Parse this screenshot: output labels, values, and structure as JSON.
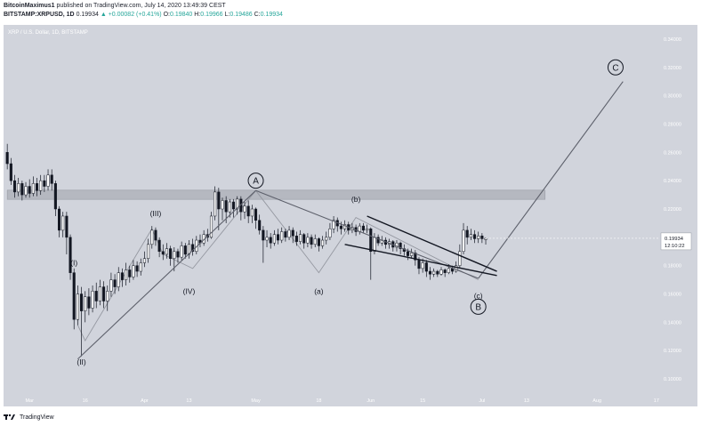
{
  "header": {
    "publisher": "BitcoinMaximus1",
    "published_text": "published on TradingView.com, July 14, 2020 13:49:39 CEST",
    "symbol": "BITSTAMP:XRPUSD, 1D",
    "last": "0.19934",
    "change": "▲ +0.00082 (+0.41%)",
    "o_label": "O:",
    "o": "0.19840",
    "h_label": "H:",
    "h": "0.19966",
    "l_label": "L:",
    "l": "0.19486",
    "c_label": "C:",
    "c": "0.19934"
  },
  "footer": {
    "brand": "TradingView"
  },
  "colors": {
    "background": "#d1d4dc",
    "line": "#5d606b",
    "up": "#ffffff",
    "down": "#131722",
    "zone": "#b2b5be",
    "price_tag": "#ffffff"
  },
  "chart_data": {
    "type": "candlestick",
    "title": "XRP / U.S. Dollar, 1D, BITSTAMP",
    "ylim": [
      0.09,
      0.35
    ],
    "y_ticks": [
      "0.34000",
      "0.32000",
      "0.30000",
      "0.28000",
      "0.26000",
      "0.24000",
      "0.22000",
      "0.20000",
      "0.18000",
      "0.16000",
      "0.14000",
      "0.12000",
      "0.10000"
    ],
    "y_tick_values": [
      0.34,
      0.32,
      0.3,
      0.28,
      0.26,
      0.24,
      0.22,
      0.2,
      0.18,
      0.16,
      0.14,
      0.12,
      0.1
    ],
    "x_ticks": [
      {
        "label": "Mar",
        "day": 0
      },
      {
        "label": "16",
        "day": 15
      },
      {
        "label": "Apr",
        "day": 31
      },
      {
        "label": "13",
        "day": 43
      },
      {
        "label": "May",
        "day": 61
      },
      {
        "label": "18",
        "day": 78
      },
      {
        "label": "Jun",
        "day": 92
      },
      {
        "label": "15",
        "day": 106
      },
      {
        "label": "Jul",
        "day": 122
      },
      {
        "label": "13",
        "day": 134
      },
      {
        "label": "Aug",
        "day": 153
      },
      {
        "label": "17",
        "day": 169
      }
    ],
    "x_range": [
      -7,
      170
    ],
    "last_price": {
      "value": 0.19934,
      "label": "0.19934",
      "timer": "12:10:22"
    },
    "resistance_zone": {
      "low": 0.2268,
      "high": 0.2333,
      "day_start": -6,
      "day_end": 139
    },
    "candles": [
      [
        -6,
        0.26,
        0.252,
        0.266,
        0.248
      ],
      [
        -5,
        0.252,
        0.24,
        0.256,
        0.237
      ],
      [
        -4,
        0.24,
        0.232,
        0.244,
        0.228
      ],
      [
        -3,
        0.232,
        0.238,
        0.242,
        0.229
      ],
      [
        -2,
        0.238,
        0.23,
        0.24,
        0.226
      ],
      [
        -1,
        0.23,
        0.236,
        0.239,
        0.228
      ],
      [
        0,
        0.236,
        0.231,
        0.241,
        0.228
      ],
      [
        1,
        0.231,
        0.238,
        0.243,
        0.229
      ],
      [
        2,
        0.238,
        0.233,
        0.242,
        0.229
      ],
      [
        3,
        0.233,
        0.24,
        0.244,
        0.23
      ],
      [
        4,
        0.24,
        0.236,
        0.244,
        0.232
      ],
      [
        5,
        0.236,
        0.244,
        0.248,
        0.233
      ],
      [
        6,
        0.244,
        0.238,
        0.248,
        0.233
      ],
      [
        7,
        0.238,
        0.22,
        0.24,
        0.215
      ],
      [
        8,
        0.22,
        0.205,
        0.222,
        0.2
      ],
      [
        9,
        0.205,
        0.215,
        0.218,
        0.2
      ],
      [
        10,
        0.215,
        0.2,
        0.218,
        0.188
      ],
      [
        11,
        0.2,
        0.175,
        0.202,
        0.17
      ],
      [
        12,
        0.175,
        0.142,
        0.178,
        0.135
      ],
      [
        13,
        0.142,
        0.16,
        0.166,
        0.138
      ],
      [
        14,
        0.16,
        0.148,
        0.165,
        0.116
      ],
      [
        15,
        0.148,
        0.158,
        0.162,
        0.14
      ],
      [
        16,
        0.158,
        0.15,
        0.164,
        0.145
      ],
      [
        17,
        0.15,
        0.162,
        0.166,
        0.147
      ],
      [
        18,
        0.162,
        0.155,
        0.168,
        0.15
      ],
      [
        19,
        0.155,
        0.165,
        0.17,
        0.152
      ],
      [
        20,
        0.165,
        0.155,
        0.169,
        0.15
      ],
      [
        21,
        0.155,
        0.162,
        0.166,
        0.148
      ],
      [
        22,
        0.162,
        0.17,
        0.175,
        0.158
      ],
      [
        23,
        0.17,
        0.165,
        0.174,
        0.16
      ],
      [
        24,
        0.165,
        0.175,
        0.179,
        0.162
      ],
      [
        25,
        0.175,
        0.17,
        0.178,
        0.165
      ],
      [
        26,
        0.17,
        0.177,
        0.182,
        0.166
      ],
      [
        27,
        0.177,
        0.172,
        0.18,
        0.168
      ],
      [
        28,
        0.172,
        0.18,
        0.184,
        0.17
      ],
      [
        29,
        0.18,
        0.176,
        0.183,
        0.172
      ],
      [
        30,
        0.176,
        0.182,
        0.185,
        0.173
      ],
      [
        31,
        0.182,
        0.185,
        0.19,
        0.179
      ],
      [
        32,
        0.185,
        0.195,
        0.199,
        0.182
      ],
      [
        33,
        0.195,
        0.205,
        0.208,
        0.192
      ],
      [
        34,
        0.205,
        0.198,
        0.207,
        0.194
      ],
      [
        35,
        0.198,
        0.19,
        0.2,
        0.186
      ],
      [
        36,
        0.19,
        0.188,
        0.195,
        0.184
      ],
      [
        37,
        0.188,
        0.192,
        0.196,
        0.185
      ],
      [
        38,
        0.192,
        0.185,
        0.194,
        0.18
      ],
      [
        39,
        0.185,
        0.19,
        0.193,
        0.176
      ],
      [
        40,
        0.19,
        0.186,
        0.192,
        0.182
      ],
      [
        41,
        0.186,
        0.194,
        0.197,
        0.184
      ],
      [
        42,
        0.194,
        0.188,
        0.196,
        0.185
      ],
      [
        43,
        0.188,
        0.195,
        0.198,
        0.185
      ],
      [
        44,
        0.195,
        0.19,
        0.199,
        0.187
      ],
      [
        45,
        0.19,
        0.198,
        0.201,
        0.188
      ],
      [
        46,
        0.198,
        0.196,
        0.202,
        0.193
      ],
      [
        47,
        0.196,
        0.202,
        0.205,
        0.194
      ],
      [
        48,
        0.202,
        0.2,
        0.206,
        0.197
      ],
      [
        49,
        0.2,
        0.215,
        0.218,
        0.199
      ],
      [
        50,
        0.215,
        0.232,
        0.236,
        0.212
      ],
      [
        51,
        0.232,
        0.22,
        0.235,
        0.205
      ],
      [
        52,
        0.22,
        0.226,
        0.228,
        0.212
      ],
      [
        53,
        0.226,
        0.218,
        0.229,
        0.21
      ],
      [
        54,
        0.218,
        0.225,
        0.227,
        0.214
      ],
      [
        55,
        0.225,
        0.22,
        0.227,
        0.214
      ],
      [
        56,
        0.22,
        0.227,
        0.229,
        0.216
      ],
      [
        57,
        0.227,
        0.218,
        0.229,
        0.212
      ],
      [
        58,
        0.218,
        0.222,
        0.225,
        0.213
      ],
      [
        59,
        0.222,
        0.215,
        0.226,
        0.21
      ],
      [
        60,
        0.215,
        0.22,
        0.223,
        0.21
      ],
      [
        61,
        0.22,
        0.212,
        0.221,
        0.206
      ],
      [
        62,
        0.212,
        0.205,
        0.216,
        0.202
      ],
      [
        63,
        0.205,
        0.198,
        0.208,
        0.182
      ],
      [
        64,
        0.198,
        0.2,
        0.205,
        0.193
      ],
      [
        65,
        0.2,
        0.196,
        0.203,
        0.192
      ],
      [
        66,
        0.196,
        0.202,
        0.205,
        0.194
      ],
      [
        67,
        0.202,
        0.198,
        0.206,
        0.195
      ],
      [
        68,
        0.198,
        0.204,
        0.207,
        0.196
      ],
      [
        69,
        0.204,
        0.2,
        0.206,
        0.197
      ],
      [
        70,
        0.2,
        0.205,
        0.208,
        0.198
      ],
      [
        71,
        0.205,
        0.201,
        0.207,
        0.196
      ],
      [
        72,
        0.201,
        0.197,
        0.204,
        0.194
      ],
      [
        73,
        0.197,
        0.202,
        0.205,
        0.195
      ],
      [
        74,
        0.202,
        0.196,
        0.203,
        0.192
      ],
      [
        75,
        0.196,
        0.2,
        0.203,
        0.193
      ],
      [
        76,
        0.2,
        0.195,
        0.202,
        0.192
      ],
      [
        77,
        0.195,
        0.199,
        0.202,
        0.193
      ],
      [
        78,
        0.199,
        0.194,
        0.2,
        0.19
      ],
      [
        79,
        0.194,
        0.198,
        0.201,
        0.192
      ],
      [
        80,
        0.198,
        0.2,
        0.204,
        0.195
      ],
      [
        81,
        0.2,
        0.206,
        0.21,
        0.198
      ],
      [
        82,
        0.206,
        0.212,
        0.215,
        0.203
      ],
      [
        83,
        0.212,
        0.208,
        0.214,
        0.204
      ],
      [
        84,
        0.208,
        0.206,
        0.211,
        0.202
      ],
      [
        85,
        0.206,
        0.209,
        0.212,
        0.204
      ],
      [
        86,
        0.209,
        0.205,
        0.211,
        0.202
      ],
      [
        87,
        0.205,
        0.207,
        0.21,
        0.203
      ],
      [
        88,
        0.207,
        0.204,
        0.209,
        0.201
      ],
      [
        89,
        0.204,
        0.208,
        0.21,
        0.202
      ],
      [
        90,
        0.208,
        0.205,
        0.21,
        0.203
      ],
      [
        91,
        0.205,
        0.206,
        0.209,
        0.203
      ],
      [
        92,
        0.206,
        0.19,
        0.207,
        0.17
      ],
      [
        93,
        0.19,
        0.2,
        0.203,
        0.188
      ],
      [
        94,
        0.2,
        0.196,
        0.202,
        0.194
      ],
      [
        95,
        0.196,
        0.198,
        0.201,
        0.194
      ],
      [
        96,
        0.198,
        0.195,
        0.2,
        0.192
      ],
      [
        97,
        0.195,
        0.197,
        0.199,
        0.192
      ],
      [
        98,
        0.197,
        0.193,
        0.198,
        0.19
      ],
      [
        99,
        0.193,
        0.196,
        0.198,
        0.19
      ],
      [
        100,
        0.196,
        0.192,
        0.197,
        0.188
      ],
      [
        101,
        0.192,
        0.19,
        0.195,
        0.187
      ],
      [
        102,
        0.19,
        0.187,
        0.192,
        0.184
      ],
      [
        103,
        0.187,
        0.189,
        0.192,
        0.185
      ],
      [
        104,
        0.189,
        0.184,
        0.191,
        0.18
      ],
      [
        105,
        0.184,
        0.178,
        0.186,
        0.174
      ],
      [
        106,
        0.178,
        0.182,
        0.185,
        0.175
      ],
      [
        107,
        0.182,
        0.176,
        0.184,
        0.172
      ],
      [
        108,
        0.176,
        0.174,
        0.179,
        0.17
      ],
      [
        109,
        0.174,
        0.176,
        0.178,
        0.172
      ],
      [
        110,
        0.176,
        0.174,
        0.177,
        0.172
      ],
      [
        111,
        0.174,
        0.177,
        0.179,
        0.173
      ],
      [
        112,
        0.177,
        0.175,
        0.178,
        0.172
      ],
      [
        113,
        0.175,
        0.178,
        0.181,
        0.174
      ],
      [
        114,
        0.178,
        0.176,
        0.18,
        0.174
      ],
      [
        115,
        0.176,
        0.18,
        0.183,
        0.175
      ],
      [
        116,
        0.18,
        0.19,
        0.195,
        0.178
      ],
      [
        117,
        0.19,
        0.205,
        0.21,
        0.188
      ],
      [
        118,
        0.205,
        0.2,
        0.208,
        0.195
      ],
      [
        119,
        0.2,
        0.202,
        0.206,
        0.198
      ],
      [
        120,
        0.202,
        0.199,
        0.205,
        0.196
      ],
      [
        121,
        0.199,
        0.201,
        0.204,
        0.196
      ],
      [
        122,
        0.201,
        0.199,
        0.203,
        0.196
      ],
      [
        123,
        0.1984,
        0.1993,
        0.1997,
        0.1949
      ]
    ]
  },
  "annotations": {
    "waves": [
      {
        "label": "(I)",
        "day": 12,
        "price": 0.18
      },
      {
        "label": "(II)",
        "day": 14,
        "price": 0.11
      },
      {
        "label": "(III)",
        "day": 34,
        "price": 0.215
      },
      {
        "label": "(IV)",
        "day": 43,
        "price": 0.16
      },
      {
        "label": "(a)",
        "day": 78,
        "price": 0.16
      },
      {
        "label": "(b)",
        "day": 88,
        "price": 0.225
      },
      {
        "label": "(c)",
        "day": 121,
        "price": 0.157
      }
    ],
    "circled": [
      {
        "label": "A",
        "day": 61,
        "price": 0.24
      },
      {
        "label": "B",
        "day": 121,
        "price": 0.151
      },
      {
        "label": "C",
        "day": 158,
        "price": 0.32
      }
    ],
    "lines": [
      {
        "name": "wave-A-line",
        "from": [
          13,
          0.114
        ],
        "to": [
          61,
          0.233
        ]
      },
      {
        "name": "wave-B-line",
        "from": [
          61,
          0.233
        ],
        "to": [
          121,
          0.171
        ]
      },
      {
        "name": "wave-C-line",
        "from": [
          121,
          0.171
        ],
        "to": [
          160,
          0.31
        ]
      },
      {
        "name": "channel-top",
        "from": [
          91,
          0.215
        ],
        "to": [
          126,
          0.176
        ]
      },
      {
        "name": "channel-bottom",
        "from": [
          85,
          0.195
        ],
        "to": [
          126,
          0.173
        ]
      }
    ],
    "subwaves": [
      [
        [
          13,
          0.138
        ],
        [
          15,
          0.127
        ],
        [
          33,
          0.206
        ],
        [
          36,
          0.188
        ],
        [
          44,
          0.178
        ],
        [
          61,
          0.233
        ]
      ],
      [
        [
          61,
          0.233
        ],
        [
          78,
          0.175
        ],
        [
          88,
          0.214
        ],
        [
          121,
          0.17
        ]
      ]
    ]
  }
}
